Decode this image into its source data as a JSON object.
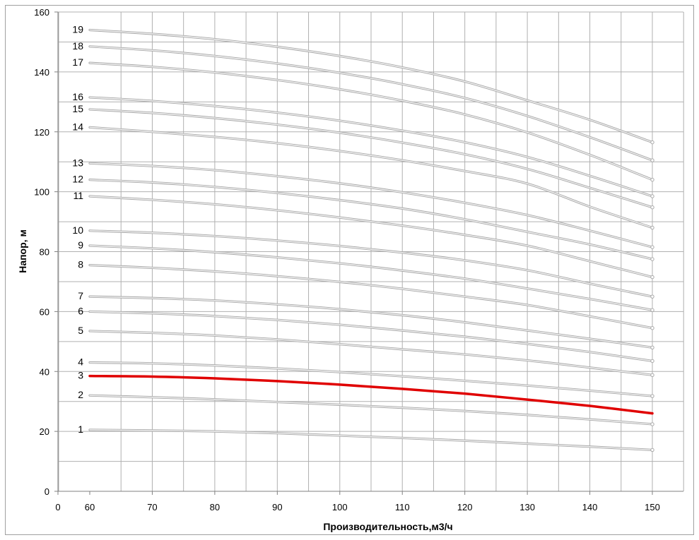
{
  "chart_data": {
    "type": "line",
    "title": "",
    "xlabel": "Производительность,м3/ч",
    "ylabel": "Напор, м",
    "xlim": [
      0,
      155
    ],
    "ylim": [
      0,
      160
    ],
    "x_ticks": [
      0,
      60,
      70,
      80,
      90,
      100,
      110,
      120,
      130,
      140,
      150
    ],
    "y_ticks": [
      0,
      20,
      40,
      60,
      80,
      100,
      120,
      140,
      160
    ],
    "grid": true,
    "legend": "none",
    "x": [
      60,
      70,
      80,
      90,
      100,
      110,
      120,
      130,
      140,
      150
    ],
    "colors": {
      "default_series": "#bdbdbd",
      "highlight_series": "#e00000",
      "grid": "#b0b0b0",
      "frame": "#a0a0a0"
    },
    "highlight_series": "3",
    "series": [
      {
        "name": "1",
        "values": [
          20.5,
          20.3,
          20.0,
          19.4,
          18.6,
          17.8,
          16.9,
          15.9,
          14.9,
          13.8
        ]
      },
      {
        "name": "2",
        "values": [
          32.0,
          31.4,
          30.7,
          29.8,
          28.9,
          27.9,
          26.8,
          25.5,
          24.0,
          22.4
        ]
      },
      {
        "name": "3",
        "values": [
          38.5,
          38.3,
          37.7,
          36.8,
          35.6,
          34.2,
          32.6,
          30.6,
          28.5,
          26.0
        ]
      },
      {
        "name": "4",
        "values": [
          43.0,
          42.7,
          42.0,
          41.0,
          39.8,
          38.4,
          36.9,
          35.3,
          33.6,
          31.8
        ]
      },
      {
        "name": "5",
        "values": [
          53.5,
          52.9,
          52.0,
          50.7,
          49.1,
          47.4,
          45.7,
          43.7,
          41.3,
          38.8
        ]
      },
      {
        "name": "6",
        "values": [
          60.0,
          59.4,
          58.5,
          57.2,
          55.6,
          53.7,
          51.6,
          49.2,
          46.5,
          43.5
        ]
      },
      {
        "name": "7",
        "values": [
          65.0,
          64.5,
          63.7,
          62.4,
          60.8,
          58.8,
          56.4,
          53.7,
          50.9,
          48.0
        ]
      },
      {
        "name": "8",
        "values": [
          75.5,
          74.6,
          73.4,
          71.8,
          69.9,
          67.6,
          65.0,
          62.2,
          58.4,
          54.5
        ]
      },
      {
        "name": "9",
        "values": [
          82.0,
          81.1,
          79.8,
          78.1,
          76.1,
          73.7,
          71.0,
          67.7,
          64.2,
          60.5
        ]
      },
      {
        "name": "10",
        "values": [
          87.0,
          86.3,
          85.2,
          83.7,
          81.9,
          79.7,
          77.1,
          73.8,
          69.3,
          65.0
        ]
      },
      {
        "name": "11",
        "values": [
          98.5,
          97.3,
          95.8,
          93.8,
          91.4,
          88.7,
          85.6,
          82.0,
          76.8,
          71.5
        ]
      },
      {
        "name": "12",
        "values": [
          104.0,
          103.1,
          101.6,
          99.6,
          97.2,
          94.4,
          90.8,
          86.6,
          82.4,
          77.5
        ]
      },
      {
        "name": "13",
        "values": [
          109.5,
          108.6,
          107.2,
          105.2,
          102.8,
          99.8,
          96.3,
          92.2,
          87.0,
          81.5
        ]
      },
      {
        "name": "14",
        "values": [
          121.5,
          120.0,
          118.3,
          116.2,
          113.6,
          110.5,
          106.9,
          102.7,
          95.0,
          88.0
        ]
      },
      {
        "name": "15",
        "values": [
          127.5,
          126.3,
          124.6,
          122.4,
          119.7,
          116.4,
          112.5,
          107.6,
          101.3,
          94.8
        ]
      },
      {
        "name": "16",
        "values": [
          131.5,
          130.3,
          128.6,
          126.4,
          123.7,
          120.4,
          116.5,
          111.6,
          105.3,
          98.5
        ]
      },
      {
        "name": "17",
        "values": [
          143.0,
          141.7,
          139.8,
          137.3,
          134.2,
          130.4,
          125.8,
          119.8,
          112.3,
          104.0
        ]
      },
      {
        "name": "18",
        "values": [
          148.5,
          147.2,
          145.3,
          142.8,
          139.7,
          135.9,
          131.3,
          125.3,
          118.2,
          110.5
        ]
      },
      {
        "name": "19",
        "values": [
          154.0,
          152.7,
          150.9,
          148.4,
          145.3,
          141.5,
          136.8,
          130.5,
          124.0,
          116.5
        ]
      }
    ]
  }
}
